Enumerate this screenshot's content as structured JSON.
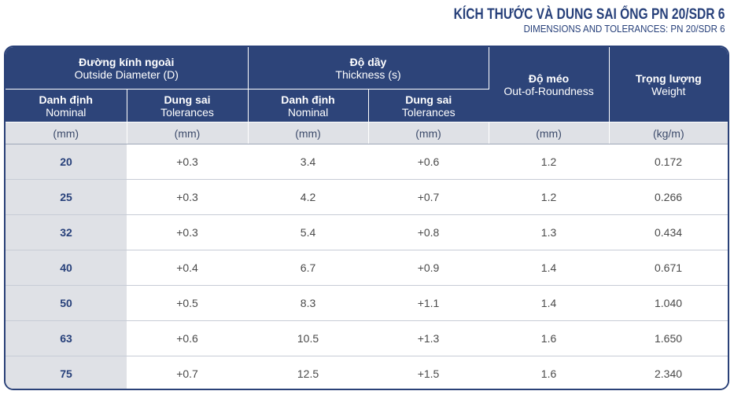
{
  "title": {
    "vi": "KÍCH THƯỚC VÀ DUNG SAI ỐNG PN 20/SDR 6",
    "en": "DIMENSIONS AND TOLERANCES: PN 20/SDR 6"
  },
  "header": {
    "outside_diameter": {
      "vi": "Đường kính ngoài",
      "en": "Outside Diameter (D)"
    },
    "thickness": {
      "vi": "Độ dầy",
      "en": "Thickness (s)"
    },
    "out_of_roundness": {
      "vi": "Độ méo",
      "en": "Out-of-Roundness"
    },
    "weight": {
      "vi": "Trọng lượng",
      "en": "Weight"
    },
    "nominal": {
      "vi": "Danh định",
      "en": "Nominal"
    },
    "tolerances": {
      "vi": "Dung sai",
      "en": "Tolerances"
    }
  },
  "units": [
    "(mm)",
    "(mm)",
    "(mm)",
    "(mm)",
    "(mm)",
    "(kg/m)"
  ],
  "rows": [
    {
      "od_nominal": "20",
      "od_tol": "+0.3",
      "th_nominal": "3.4",
      "th_tol": "+0.6",
      "oor": "1.2",
      "weight": "0.172"
    },
    {
      "od_nominal": "25",
      "od_tol": "+0.3",
      "th_nominal": "4.2",
      "th_tol": "+0.7",
      "oor": "1.2",
      "weight": "0.266"
    },
    {
      "od_nominal": "32",
      "od_tol": "+0.3",
      "th_nominal": "5.4",
      "th_tol": "+0.8",
      "oor": "1.3",
      "weight": "0.434"
    },
    {
      "od_nominal": "40",
      "od_tol": "+0.4",
      "th_nominal": "6.7",
      "th_tol": "+0.9",
      "oor": "1.4",
      "weight": "0.671"
    },
    {
      "od_nominal": "50",
      "od_tol": "+0.5",
      "th_nominal": "8.3",
      "th_tol": "+1.1",
      "oor": "1.4",
      "weight": "1.040"
    },
    {
      "od_nominal": "63",
      "od_tol": "+0.6",
      "th_nominal": "10.5",
      "th_tol": "+1.3",
      "oor": "1.6",
      "weight": "1.650"
    },
    {
      "od_nominal": "75",
      "od_tol": "+0.7",
      "th_nominal": "12.5",
      "th_tol": "+1.5",
      "oor": "1.6",
      "weight": "2.340"
    }
  ],
  "colors": {
    "header_bg": "#2d4479",
    "title_text": "#27407a",
    "shaded_cell": "#dfe1e6"
  }
}
